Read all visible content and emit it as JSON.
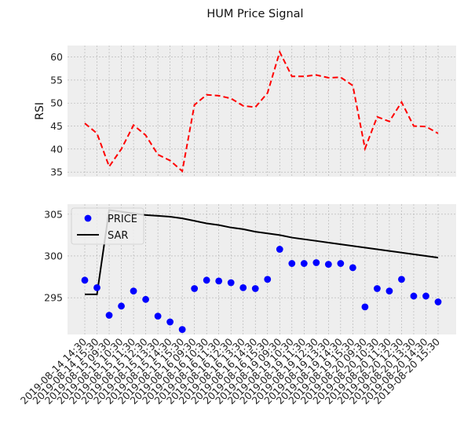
{
  "chart_data": {
    "title": "HUM Price Signal",
    "colors": {
      "rsi_line": "#ff0000",
      "price_marker": "#0000ff",
      "sar_line": "#000000",
      "axes_background": "#eeeeee",
      "grid": "#b0b0b0"
    },
    "x": [
      "2019-08-14 14:30",
      "2019-08-14 15:30",
      "2019-08-15 09:30",
      "2019-08-15 10:30",
      "2019-08-15 11:30",
      "2019-08-15 12:30",
      "2019-08-15 13:30",
      "2019-08-15 14:30",
      "2019-08-15 15:30",
      "2019-08-16 09:30",
      "2019-08-16 10:30",
      "2019-08-16 11:30",
      "2019-08-16 12:30",
      "2019-08-16 13:30",
      "2019-08-16 14:30",
      "2019-08-16 15:30",
      "2019-08-19 09:30",
      "2019-08-19 10:30",
      "2019-08-19 11:30",
      "2019-08-19 12:30",
      "2019-08-19 13:30",
      "2019-08-19 14:30",
      "2019-08-19 15:30",
      "2019-08-20 09:30",
      "2019-08-20 10:30",
      "2019-08-20 11:30",
      "2019-08-20 12:30",
      "2019-08-20 13:30",
      "2019-08-20 14:30",
      "2019-08-20 15:30"
    ],
    "charts": [
      {
        "type": "line",
        "ylabel": "RSI",
        "ylim": [
          34,
          62.5
        ],
        "yticks": [
          35,
          40,
          45,
          50,
          55,
          60
        ],
        "grid": true,
        "series": [
          {
            "style": "dashed",
            "values": [
              45.6,
              43.4,
              36.2,
              40.0,
              45.2,
              43.0,
              38.8,
              37.5,
              35.2,
              49.6,
              51.8,
              51.6,
              51.0,
              49.4,
              49.1,
              52.2,
              61.1,
              55.8,
              55.8,
              56.1,
              55.5,
              55.6,
              53.8,
              40.1,
              47.0,
              46.0,
              50.2,
              45.0,
              44.9,
              43.4
            ]
          }
        ]
      },
      {
        "type": "line+scatter",
        "ylim": [
          290.6,
          306.2
        ],
        "yticks": [
          295,
          300,
          305
        ],
        "grid": true,
        "legend_position": "top-left",
        "series": [
          {
            "name": "PRICE",
            "type": "scatter",
            "values": [
              297.1,
              296.2,
              292.9,
              294.0,
              295.8,
              294.8,
              292.8,
              292.1,
              291.2,
              296.1,
              297.1,
              297.0,
              296.8,
              296.2,
              296.1,
              297.2,
              300.8,
              299.1,
              299.1,
              299.2,
              299.0,
              299.1,
              298.6,
              293.9,
              296.1,
              295.8,
              297.2,
              295.2,
              295.2,
              294.5
            ]
          },
          {
            "name": "SAR",
            "type": "line",
            "values": [
              295.4,
              295.4,
              305.5,
              305.3,
              305.1,
              304.9,
              304.8,
              304.7,
              304.5,
              304.2,
              303.9,
              303.7,
              303.4,
              303.2,
              302.9,
              302.7,
              302.5,
              302.2,
              302.0,
              301.8,
              301.6,
              301.4,
              301.2,
              301.0,
              300.8,
              300.6,
              300.4,
              300.2,
              300.0,
              299.8
            ]
          }
        ]
      }
    ]
  }
}
